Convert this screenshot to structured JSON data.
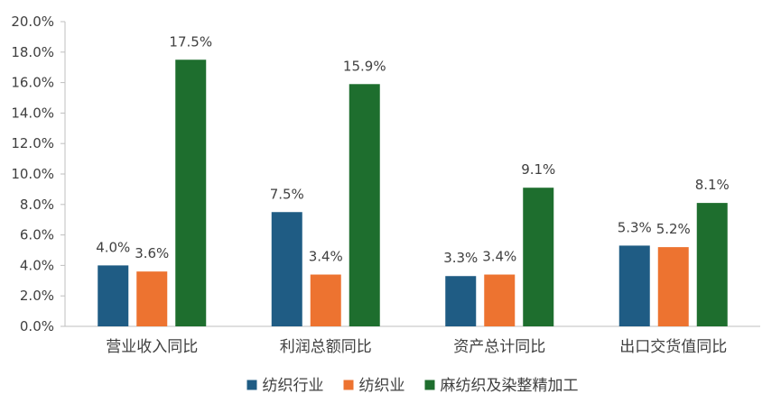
{
  "chart_data": {
    "type": "bar",
    "categories": [
      "营业收入同比",
      "利润总额同比",
      "资产总计同比",
      "出口交货值同比"
    ],
    "series": [
      {
        "name": "纺织行业",
        "values": [
          4.0,
          7.5,
          3.3,
          5.3
        ],
        "labels": [
          "4.0%",
          "7.5%",
          "3.3%",
          "5.3%"
        ],
        "color": "#1f5c84"
      },
      {
        "name": "纺织业",
        "values": [
          3.6,
          3.4,
          3.4,
          5.2
        ],
        "labels": [
          "3.6%",
          "3.4%",
          "3.4%",
          "5.2%"
        ],
        "color": "#ed7330"
      },
      {
        "name": "麻纺织及染整精加工",
        "values": [
          17.5,
          15.9,
          9.1,
          8.1
        ],
        "labels": [
          "17.5%",
          "15.9%",
          "9.1%",
          "8.1%"
        ],
        "color": "#1e6e2e"
      }
    ],
    "yticks": [
      "0.0%",
      "2.0%",
      "4.0%",
      "6.0%",
      "8.0%",
      "10.0%",
      "12.0%",
      "14.0%",
      "16.0%",
      "18.0%",
      "20.0%"
    ],
    "ylim": [
      0,
      20
    ],
    "grid": false,
    "legend_position": "bottom"
  }
}
